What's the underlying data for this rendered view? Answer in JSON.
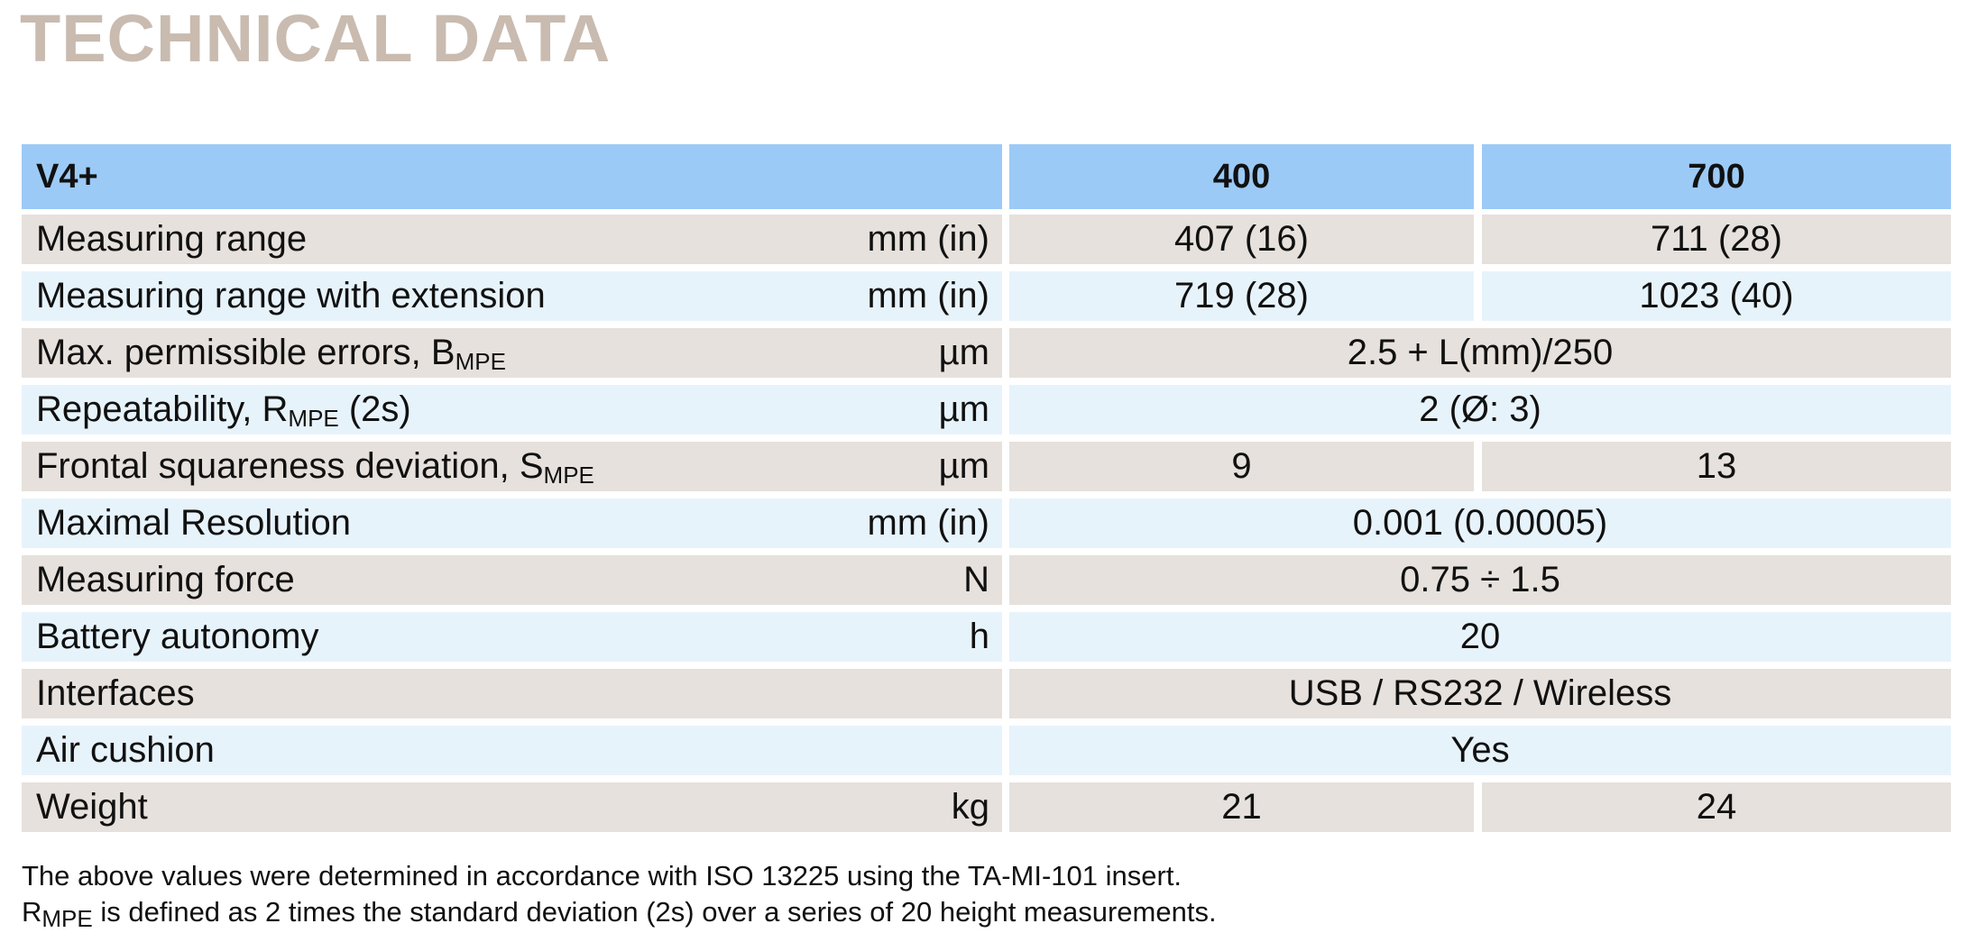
{
  "title": "TECHNICAL DATA",
  "table": {
    "header": {
      "model": "V4+",
      "columns": [
        "400",
        "700"
      ]
    },
    "rows": [
      {
        "label": [
          {
            "text": "Measuring range"
          }
        ],
        "unit": "mm (in)",
        "values": [
          "407 (16)",
          "711 (28)"
        ]
      },
      {
        "label": [
          {
            "text": "Measuring range with extension"
          }
        ],
        "unit": "mm (in)",
        "values": [
          "719 (28)",
          "1023 (40)"
        ]
      },
      {
        "label": [
          {
            "text": "Max. permissible errors, B"
          },
          {
            "sub": "MPE"
          }
        ],
        "unit": "µm",
        "values": [
          "2.5 + L(mm)/250"
        ]
      },
      {
        "label": [
          {
            "text": "Repeatability, R"
          },
          {
            "sub": "MPE"
          },
          {
            "text": " (2s)"
          }
        ],
        "unit": "µm",
        "values": [
          "2 (Ø: 3)"
        ]
      },
      {
        "label": [
          {
            "text": "Frontal squareness deviation, S"
          },
          {
            "sub": "MPE"
          }
        ],
        "unit": "µm",
        "values": [
          "9",
          "13"
        ]
      },
      {
        "label": [
          {
            "text": "Maximal Resolution"
          }
        ],
        "unit": "mm (in)",
        "values": [
          "0.001 (0.00005)"
        ]
      },
      {
        "label": [
          {
            "text": "Measuring force"
          }
        ],
        "unit": "N",
        "values": [
          "0.75 ÷ 1.5"
        ]
      },
      {
        "label": [
          {
            "text": "Battery autonomy"
          }
        ],
        "unit": "h",
        "values": [
          "20"
        ]
      },
      {
        "label": [
          {
            "text": "Interfaces"
          }
        ],
        "values": [
          "USB / RS232 / Wireless"
        ]
      },
      {
        "label": [
          {
            "text": "Air cushion"
          }
        ],
        "values": [
          "Yes"
        ]
      },
      {
        "label": [
          {
            "text": "Weight"
          }
        ],
        "unit": "kg",
        "values": [
          "21",
          "24"
        ]
      }
    ]
  },
  "notes": [
    [
      {
        "text": "The above values were determined in accordance with ISO 13225 using the TA-MI-101 insert."
      }
    ],
    [
      {
        "text": "R"
      },
      {
        "sub": "MPE"
      },
      {
        "text": " is defined as 2 times the standard deviation (2s) over a series of 20 height measurements."
      }
    ]
  ]
}
